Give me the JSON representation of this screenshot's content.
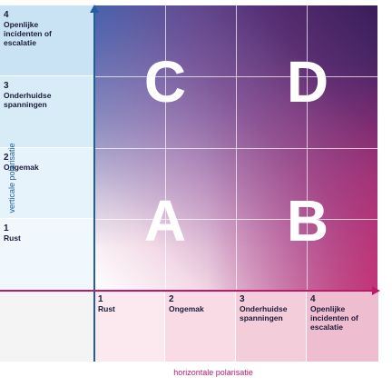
{
  "vertical_axis": {
    "title": "verticale polarisatie",
    "color": "#1f5f9f",
    "levels": [
      {
        "num": "4",
        "label": "Openlijke\nincidenten of\nescalatie",
        "bg": "#c9e3f5"
      },
      {
        "num": "3",
        "label": "Onderhuidse\nspanningen",
        "bg": "#d8ecf8"
      },
      {
        "num": "2",
        "label": "Ongemak",
        "bg": "#e6f3fb"
      },
      {
        "num": "1",
        "label": "Rust",
        "bg": "#f1f8fd"
      }
    ]
  },
  "horizontal_axis": {
    "title": "horizontale polarisatie",
    "color": "#c0196b",
    "levels": [
      {
        "num": "1",
        "label": "Rust",
        "bg": "#fbe9ef"
      },
      {
        "num": "2",
        "label": "Ongemak",
        "bg": "#f8dbe5"
      },
      {
        "num": "3",
        "label": "Onderhuidse\nspanningen",
        "bg": "#f4cddb"
      },
      {
        "num": "4",
        "label": "Openlijke\nincidenten of\nescalatie",
        "bg": "#efbdd0"
      }
    ]
  },
  "quadrants": {
    "c": "C",
    "d": "D",
    "a": "A",
    "b": "B"
  },
  "colors": {
    "vertical_axis": "#1f5f9f",
    "horizontal_axis": "#c0196b",
    "corner_cell": "#f4f4f4"
  }
}
